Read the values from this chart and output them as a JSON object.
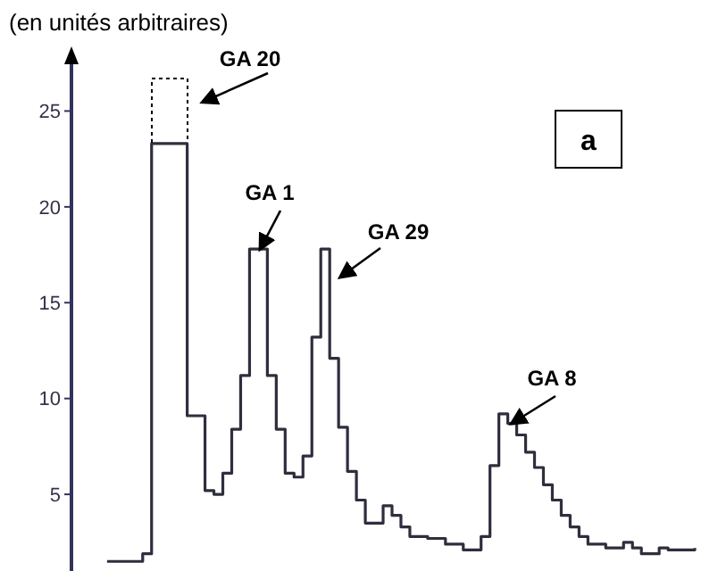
{
  "chart_data": {
    "type": "step",
    "ylabel": "(en unités arbitraires)",
    "annotations": [
      "GA 20",
      "GA 1",
      "GA 29",
      "GA 8",
      "a"
    ],
    "categories": [
      null,
      null,
      null,
      null,
      null,
      null,
      null,
      null,
      null,
      null,
      null,
      null,
      null,
      null,
      null,
      null,
      null,
      null,
      null,
      null,
      null,
      null,
      null,
      null,
      null,
      null,
      null,
      null,
      null,
      null,
      null,
      null,
      null,
      null,
      null,
      null,
      null,
      null,
      null,
      null,
      null,
      null,
      null,
      null,
      null,
      null,
      null,
      null,
      null,
      null,
      null,
      null,
      null,
      null,
      null,
      null,
      null,
      null,
      null,
      null,
      null,
      null,
      null,
      null,
      null,
      null,
      null
    ],
    "values": [
      1.5,
      1.5,
      1.5,
      1.5,
      1.9,
      23.3,
      23.3,
      23.3,
      23.3,
      9.1,
      9.1,
      5.2,
      5.0,
      6.1,
      8.4,
      11.2,
      17.8,
      17.8,
      11.2,
      8.4,
      6.1,
      5.9,
      7.0,
      13.2,
      17.8,
      12.1,
      8.5,
      6.2,
      4.7,
      3.5,
      3.5,
      4.4,
      3.9,
      3.3,
      2.8,
      2.8,
      2.7,
      2.7,
      2.4,
      2.4,
      2.1,
      2.1,
      2.8,
      6.5,
      9.2,
      8.7,
      8.1,
      7.2,
      6.4,
      5.5,
      4.7,
      3.9,
      3.3,
      2.8,
      2.4,
      2.4,
      2.2,
      2.2,
      2.5,
      2.2,
      1.9,
      1.9,
      2.2,
      2.1,
      2.1,
      2.1,
      2.2
    ],
    "color": "#2e2e3e",
    "ylim": [
      1,
      28
    ],
    "yticks": [
      5,
      10,
      15,
      20,
      25
    ],
    "tick_labels": "y"
  }
}
